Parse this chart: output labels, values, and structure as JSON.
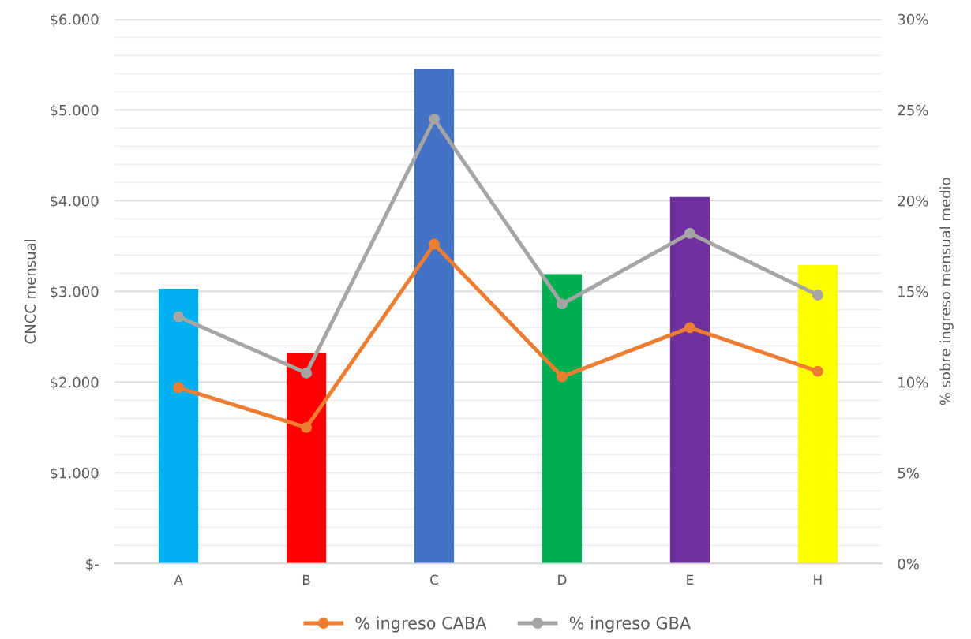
{
  "chart_data": {
    "type": "bar",
    "categories": [
      "A",
      "B",
      "C",
      "D",
      "E",
      "H"
    ],
    "ylabel": "CNCC mensual",
    "y2label": "% sobre ingreso mensual medio",
    "series": [
      {
        "colors": [
          "#00b0f0",
          "#ff0000",
          "#4472c4",
          "#00b050",
          "#7030a0",
          "#ffff00"
        ],
        "values": [
          3030,
          2320,
          5450,
          3190,
          4040,
          3290
        ]
      },
      {
        "type": "line",
        "axis": "y2",
        "name": "% ingreso CABA",
        "color": "#ed7d31",
        "values": [
          9.7,
          7.5,
          17.6,
          10.3,
          13.0,
          10.6
        ]
      },
      {
        "type": "line",
        "axis": "y2",
        "name": "% ingreso GBA",
        "color": "#a5a5a5",
        "values": [
          13.6,
          10.5,
          24.5,
          14.3,
          18.2,
          14.8
        ]
      }
    ],
    "ylim": [
      0,
      6000
    ],
    "yticks": [
      {
        "value": 0,
        "label": "$-"
      },
      {
        "value": 200,
        "label": null
      },
      {
        "value": 400,
        "label": null
      },
      {
        "value": 600,
        "label": null
      },
      {
        "value": 800,
        "label": null
      },
      {
        "value": 1000,
        "label": "$1.000"
      },
      {
        "value": 1200,
        "label": null
      },
      {
        "value": 1400,
        "label": null
      },
      {
        "value": 1600,
        "label": null
      },
      {
        "value": 1800,
        "label": null
      },
      {
        "value": 2000,
        "label": "$2.000"
      },
      {
        "value": 2200,
        "label": null
      },
      {
        "value": 2400,
        "label": null
      },
      {
        "value": 2600,
        "label": null
      },
      {
        "value": 2800,
        "label": null
      },
      {
        "value": 3000,
        "label": "$3.000"
      },
      {
        "value": 3200,
        "label": null
      },
      {
        "value": 3400,
        "label": null
      },
      {
        "value": 3600,
        "label": null
      },
      {
        "value": 3800,
        "label": null
      },
      {
        "value": 4000,
        "label": "$4.000"
      },
      {
        "value": 4200,
        "label": null
      },
      {
        "value": 4400,
        "label": null
      },
      {
        "value": 4600,
        "label": null
      },
      {
        "value": 4800,
        "label": null
      },
      {
        "value": 5000,
        "label": "$5.000"
      },
      {
        "value": 5200,
        "label": null
      },
      {
        "value": 5400,
        "label": null
      },
      {
        "value": 5600,
        "label": null
      },
      {
        "value": 5800,
        "label": null
      },
      {
        "value": 6000,
        "label": "$6.000"
      }
    ],
    "y2lim": [
      0,
      30
    ],
    "y2ticks": [
      {
        "value": 0,
        "label": "0%"
      },
      {
        "value": 5,
        "label": "5%"
      },
      {
        "value": 10,
        "label": "10%"
      },
      {
        "value": 15,
        "label": "15%"
      },
      {
        "value": 20,
        "label": "20%"
      },
      {
        "value": 25,
        "label": "25%"
      },
      {
        "value": 30,
        "label": "30%"
      }
    ],
    "grid": "y",
    "legend": "bottom",
    "marker": "circle",
    "line_style": "solid"
  }
}
